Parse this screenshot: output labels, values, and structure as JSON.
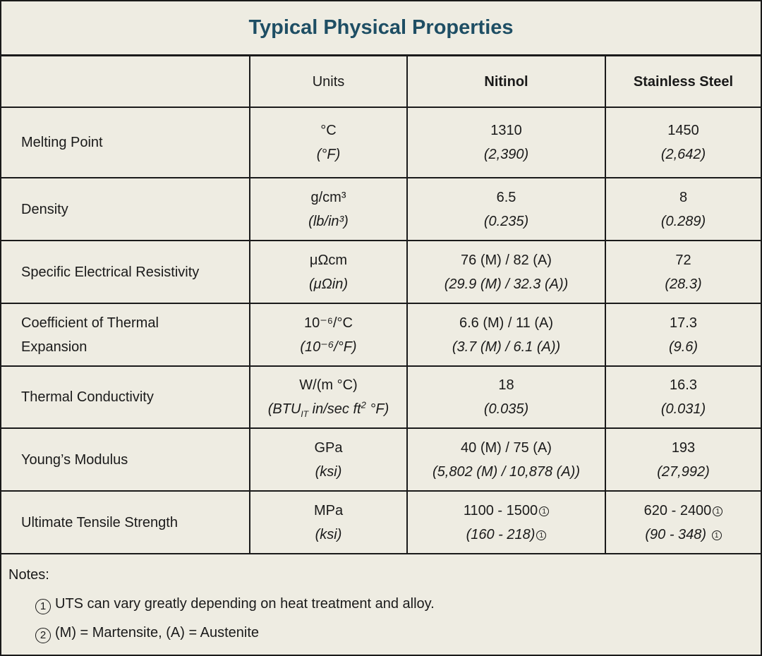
{
  "title": "Typical Physical Properties",
  "header": {
    "property": "",
    "units": "Units",
    "nitinol": "Nitinol",
    "steel": "Stainless Steel"
  },
  "rows": [
    {
      "property": "Melting Point",
      "unit1": "°C",
      "unit2": "(°F)",
      "nit1": "1310",
      "nit2": "(2,390)",
      "ss1": "1450",
      "ss2": "(2,642)"
    },
    {
      "property": "Density",
      "unit1": "g/cm³",
      "unit2": "(lb/in³)",
      "nit1": "6.5",
      "nit2": "(0.235)",
      "ss1": "8",
      "ss2": "(0.289)"
    },
    {
      "property": "Specific Electrical Resistivity",
      "unit1": "μΩcm",
      "unit2": "(μΩin)",
      "nit1": "76 (M) / 82 (A)",
      "nit2": "(29.9 (M) / 32.3 (A))",
      "ss1": "72",
      "ss2": "(28.3)"
    },
    {
      "property_line1": "Coefficient of Thermal",
      "property_line2": "Expansion",
      "unit1": "10⁻⁶/°C",
      "unit2": "(10⁻⁶/°F)",
      "nit1": "6.6 (M) / 11 (A)",
      "nit2": "(3.7 (M) / 6.1 (A))",
      "ss1": "17.3",
      "ss2": "(9.6)"
    },
    {
      "property": "Thermal Conductivity",
      "unit1": "W/(m °C)",
      "unit2_a": "(BTU",
      "unit2_sub": "IT",
      "unit2_b": " in/sec ft",
      "unit2_sup": "2",
      "unit2_c": " °F)",
      "nit1": "18",
      "nit2": "(0.035)",
      "ss1": "16.3",
      "ss2": "(0.031)"
    },
    {
      "property": "Young’s Modulus",
      "unit1": "GPa",
      "unit2": "(ksi)",
      "nit1": "40 (M) / 75 (A)",
      "nit2": "(5,802 (M) / 10,878 (A))",
      "ss1": "193",
      "ss2": "(27,992)"
    },
    {
      "property": "Ultimate Tensile Strength",
      "unit1": "MPa",
      "unit2": "(ksi)",
      "nit1": "1100 - 1500",
      "nit2": "(160 - 218)",
      "ss1": "620 - 2400",
      "ss2": "(90 - 348)",
      "note_mark": "1"
    }
  ],
  "notes": {
    "title": "Notes:",
    "items": [
      {
        "mark": "1",
        "text": "UTS can vary greatly depending on heat treatment and alloy."
      },
      {
        "mark": "2",
        "text": "(M) = Martensite, (A) = Austenite"
      }
    ]
  }
}
